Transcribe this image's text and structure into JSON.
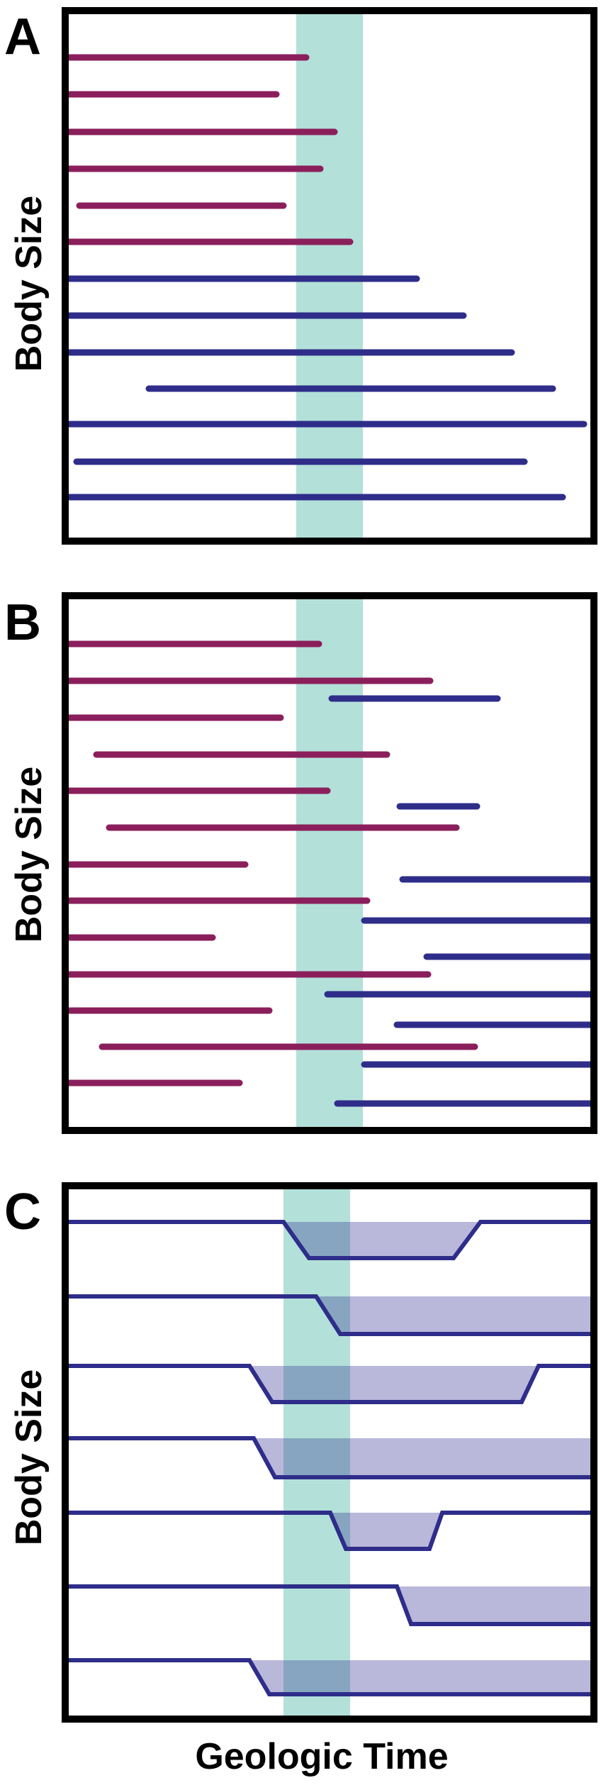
{
  "colors": {
    "extinct_line": "#8b1f5c",
    "survivor_line": "#2e2d8a",
    "event_band": "#b3e0d9",
    "size_shift_fill": "#b9b7da",
    "size_shift_overlap": "#87a5c0",
    "frame": "#000000"
  },
  "figure": {
    "x_axis_label": "Geologic Time"
  },
  "panels": [
    {
      "letter": "A",
      "y_axis_label": "Body Size"
    },
    {
      "letter": "B",
      "y_axis_label": "Body Size"
    },
    {
      "letter": "C",
      "y_axis_label": "Body Size"
    }
  ]
}
